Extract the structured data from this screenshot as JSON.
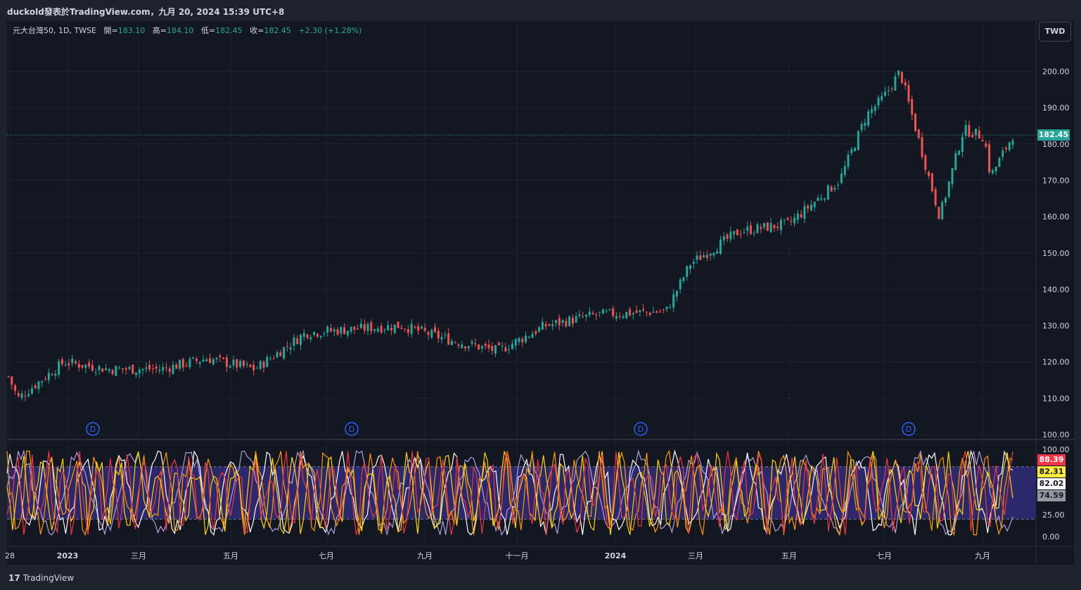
{
  "header": {
    "title": "duckold發表於TradingView.com，九月 20, 2024 15:39 UTC+8"
  },
  "legend": {
    "symbol": "元大台灣50, 1D, TWSE",
    "open_label": "開=",
    "open": "183.10",
    "high_label": "高=",
    "high": "184.10",
    "low_label": "低=",
    "low": "182.45",
    "close_label": "收=",
    "close": "182.45",
    "change": "+2.30 (+1.28%)"
  },
  "currency": "TWD",
  "price_axis": {
    "ticks": [
      "200.00",
      "190.00",
      "180.00",
      "170.00",
      "160.00",
      "150.00",
      "140.00",
      "130.00",
      "120.00",
      "110.00",
      "100.00"
    ],
    "last_price": "182.45"
  },
  "osc_axis": {
    "ticks": [
      "100.00",
      "75.00",
      "50.00",
      "25.00",
      "0.00"
    ],
    "values": [
      {
        "label": "88.39",
        "bg": "#f23645",
        "fg": "#ffffff"
      },
      {
        "label": "82.31",
        "bg": "#ffeb3b",
        "fg": "#131722"
      },
      {
        "label": "82.02",
        "bg": "#ffffff",
        "fg": "#131722"
      },
      {
        "label": "74.59",
        "bg": "#9598a1",
        "fg": "#131722"
      }
    ]
  },
  "time_axis": {
    "labels": [
      "28",
      "2023",
      "三月",
      "五月",
      "七月",
      "九月",
      "十一月",
      "2024",
      "三月",
      "五月",
      "七月",
      "九月"
    ]
  },
  "dividend_markers": [
    "D",
    "D",
    "D",
    "D"
  ],
  "footer": {
    "logo": "TradingView",
    "logo_mark": "17"
  },
  "colors": {
    "up": "#26a69a",
    "down": "#ef5350",
    "band": "#2f2a73",
    "osc_red": "#f23645",
    "osc_yellow": "#ffd600",
    "osc_orange": "#ff9800",
    "osc_white": "#ffffff",
    "osc_lavender": "#b39ddb"
  },
  "chart_data": {
    "type": "candlestick",
    "title": "元大台灣50, 1D, TWSE",
    "ylim": [
      100,
      200
    ],
    "x": [
      "2022-12-28",
      "2023-01-03",
      "2023-02-01",
      "2023-03-01",
      "2023-04-03",
      "2023-05-02",
      "2023-06-01",
      "2023-07-03",
      "2023-08-01",
      "2023-09-01",
      "2023-10-02",
      "2023-11-01",
      "2023-12-01",
      "2024-01-02",
      "2024-02-15",
      "2024-03-01",
      "2024-04-01",
      "2024-05-02",
      "2024-06-03",
      "2024-06-20",
      "2024-07-01",
      "2024-07-11",
      "2024-08-05",
      "2024-08-20",
      "2024-09-02",
      "2024-09-06",
      "2024-09-20"
    ],
    "close": [
      116,
      110,
      120,
      118,
      118,
      121,
      118,
      128,
      129,
      130,
      126,
      123,
      130,
      133,
      134,
      147,
      156,
      158,
      170,
      188,
      193,
      200,
      160,
      184,
      182,
      171,
      182.45
    ]
  }
}
